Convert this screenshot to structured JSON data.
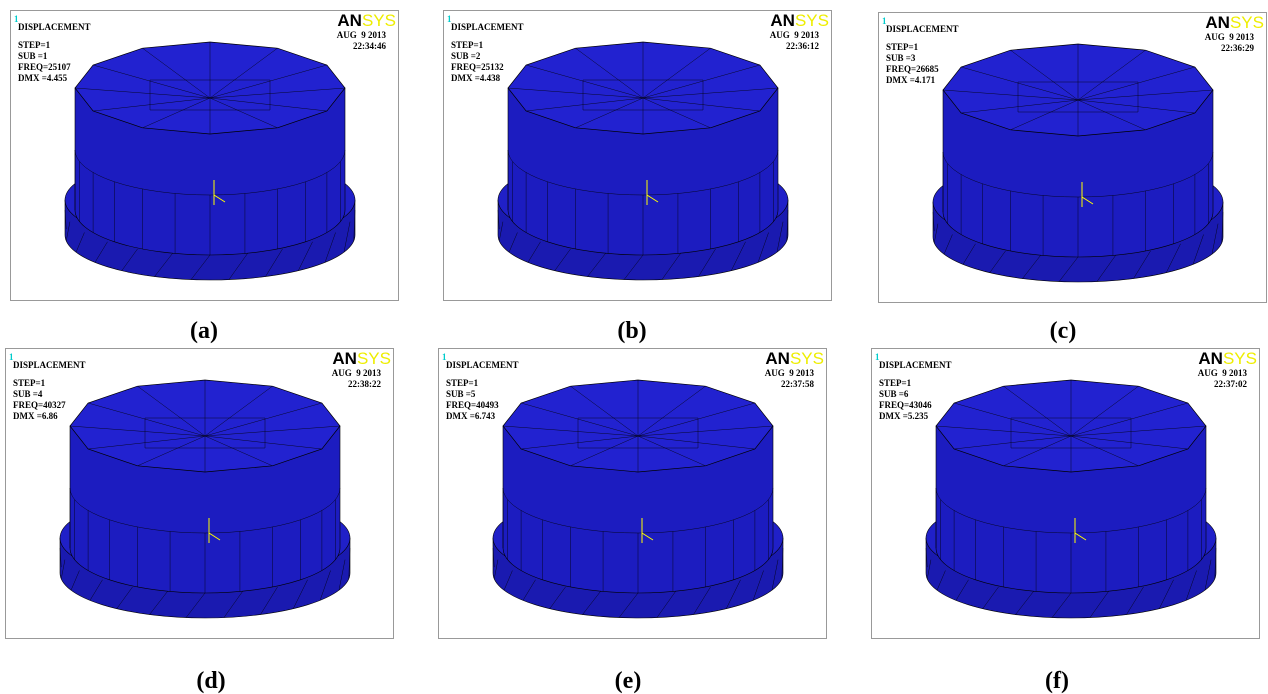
{
  "panels": [
    {
      "window": "1",
      "title": "DISPLACEMENT",
      "lines": [
        "STEP=1",
        "SUB =1",
        "FREQ=25107",
        "DMX =4.455"
      ],
      "logo": [
        "AN",
        "SYS"
      ],
      "date": "AUG  9 2013",
      "time": "22:34:46",
      "caption": "(a)"
    },
    {
      "window": "1",
      "title": "DISPLACEMENT",
      "lines": [
        "STEP=1",
        "SUB =2",
        "FREQ=25132",
        "DMX =4.438"
      ],
      "logo": [
        "AN",
        "SYS"
      ],
      "date": "AUG  9 2013",
      "time": "22:36:12",
      "caption": "(b)"
    },
    {
      "window": "1",
      "title": "DISPLACEMENT",
      "lines": [
        "STEP=1",
        "SUB =3",
        "FREQ=26685",
        "DMX =4.171"
      ],
      "logo": [
        "AN",
        "SYS"
      ],
      "date": "AUG  9 2013",
      "time": "22:36:29",
      "caption": "(c)"
    },
    {
      "window": "1",
      "title": "DISPLACEMENT",
      "lines": [
        "STEP=1",
        "SUB =4",
        "FREQ=40327",
        "DMX =6.86"
      ],
      "logo": [
        "AN",
        "SYS"
      ],
      "date": "AUG  9 2013",
      "time": "22:38:22",
      "caption": "(d)"
    },
    {
      "window": "1",
      "title": "DISPLACEMENT",
      "lines": [
        "STEP=1",
        "SUB =5",
        "FREQ=40493",
        "DMX =6.743"
      ],
      "logo": [
        "AN",
        "SYS"
      ],
      "date": "AUG  9 2013",
      "time": "22:37:58",
      "caption": "(e)"
    },
    {
      "window": "1",
      "title": "DISPLACEMENT",
      "lines": [
        "STEP=1",
        "SUB =6",
        "FREQ=43046",
        "DMX =5.235"
      ],
      "logo": [
        "AN",
        "SYS"
      ],
      "date": "AUG  9 2013",
      "time": "22:37:02",
      "caption": "(f)"
    }
  ]
}
